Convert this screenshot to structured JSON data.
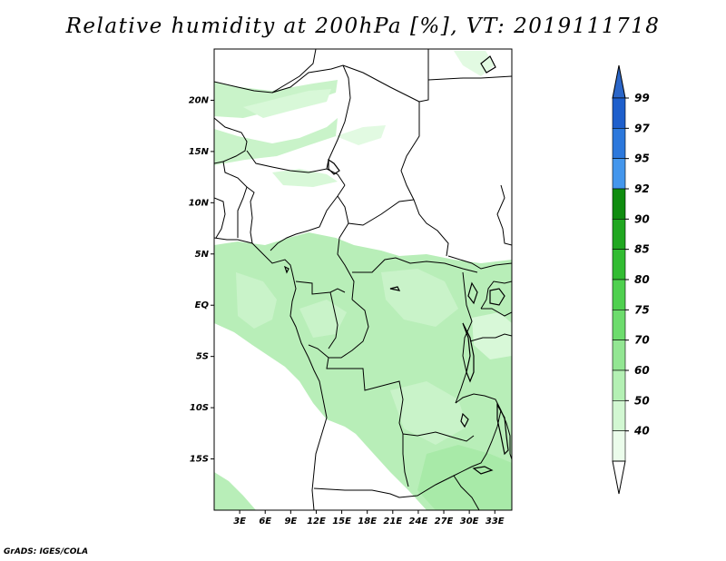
{
  "title": "Relative humidity at 200hPa [%], VT: 2019111718",
  "credit": "GrADS: IGES/COLA",
  "map": {
    "lon_range": [
      0,
      35
    ],
    "lat_range": [
      -20,
      25
    ],
    "lat_ticks": [
      {
        "lat": 20,
        "label": "20N"
      },
      {
        "lat": 15,
        "label": "15N"
      },
      {
        "lat": 10,
        "label": "10N"
      },
      {
        "lat": 5,
        "label": "5N"
      },
      {
        "lat": 0,
        "label": "EQ"
      },
      {
        "lat": -5,
        "label": "5S"
      },
      {
        "lat": -10,
        "label": "10S"
      },
      {
        "lat": -15,
        "label": "15S"
      }
    ],
    "lon_ticks": [
      {
        "lon": 3,
        "label": "3E"
      },
      {
        "lon": 6,
        "label": "6E"
      },
      {
        "lon": 9,
        "label": "9E"
      },
      {
        "lon": 12,
        "label": "12E"
      },
      {
        "lon": 15,
        "label": "15E"
      },
      {
        "lon": 18,
        "label": "18E"
      },
      {
        "lon": 21,
        "label": "21E"
      },
      {
        "lon": 24,
        "label": "24E"
      },
      {
        "lon": 27,
        "label": "27E"
      },
      {
        "lon": 30,
        "label": "30E"
      },
      {
        "lon": 33,
        "label": "33E"
      }
    ]
  },
  "colorbar": {
    "levels": [
      "99",
      "97",
      "95",
      "92",
      "90",
      "85",
      "80",
      "75",
      "70",
      "60",
      "50",
      "40"
    ],
    "bins": [
      {
        "color": "#1e5fcc"
      },
      {
        "color": "#2c78dc"
      },
      {
        "color": "#4496ec"
      },
      {
        "color": "#0f8c0f"
      },
      {
        "color": "#20a720"
      },
      {
        "color": "#32bc32"
      },
      {
        "color": "#4fd04f"
      },
      {
        "color": "#6ddc6d"
      },
      {
        "color": "#93e693"
      },
      {
        "color": "#b4f0b4"
      },
      {
        "color": "#d2f7d2"
      },
      {
        "color": "#ebfceb"
      }
    ],
    "top_arrow_color": "#2b66c8",
    "bottom_arrow_color": "#ffffff"
  }
}
